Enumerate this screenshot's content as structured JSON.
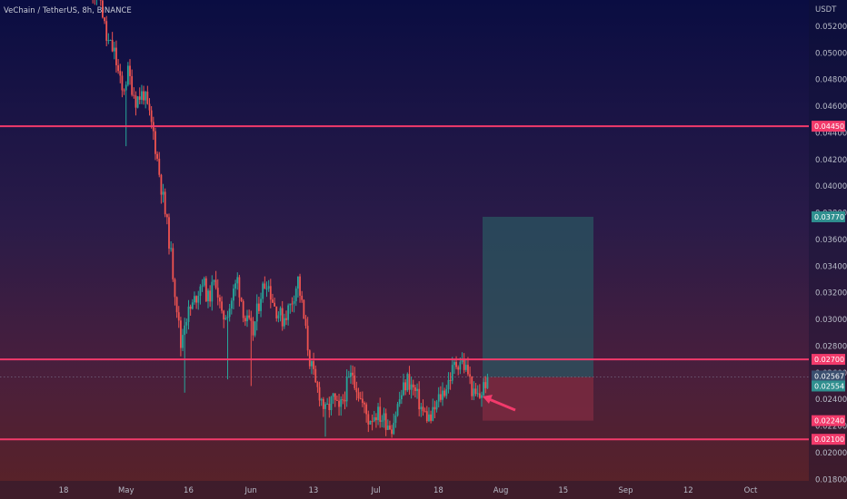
{
  "chart_data": {
    "type": "candlestick",
    "title": "VeChain / TetherUS, 8h, BINANCE",
    "currency": "USDT",
    "ylim": [
      0.0172,
      0.0537
    ],
    "y_ticks": [
      "0.05200",
      "0.05000",
      "0.04800",
      "0.04600",
      "0.04400",
      "0.04200",
      "0.04000",
      "0.03800",
      "0.03600",
      "0.03400",
      "0.03200",
      "0.03000",
      "0.02800",
      "0.02600",
      "0.02400",
      "0.02200",
      "0.02000",
      "0.01800"
    ],
    "x_labels": [
      "18",
      "May",
      "16",
      "Jun",
      "13",
      "Jul",
      "18",
      "Aug",
      "15",
      "Sep",
      "12",
      "Oct"
    ],
    "price_path": [
      [
        0,
        0.055
      ],
      [
        5,
        0.054
      ],
      [
        8,
        0.051
      ],
      [
        12,
        0.05
      ],
      [
        16,
        0.047
      ],
      [
        19,
        0.0485
      ],
      [
        23,
        0.0465
      ],
      [
        27,
        0.047
      ],
      [
        32,
        0.044
      ],
      [
        36,
        0.04
      ],
      [
        40,
        0.036
      ],
      [
        44,
        0.031
      ],
      [
        46,
        0.028
      ],
      [
        48,
        0.03
      ],
      [
        52,
        0.031
      ],
      [
        57,
        0.033
      ],
      [
        60,
        0.0315
      ],
      [
        64,
        0.033
      ],
      [
        67,
        0.03
      ],
      [
        71,
        0.031
      ],
      [
        75,
        0.033
      ],
      [
        79,
        0.03
      ],
      [
        83,
        0.029
      ],
      [
        87,
        0.032
      ],
      [
        90,
        0.033
      ],
      [
        94,
        0.031
      ],
      [
        98,
        0.03
      ],
      [
        102,
        0.031
      ],
      [
        106,
        0.033
      ],
      [
        110,
        0.029
      ],
      [
        112,
        0.027
      ],
      [
        115,
        0.025
      ],
      [
        117,
        0.0245
      ],
      [
        120,
        0.023
      ],
      [
        124,
        0.024
      ],
      [
        127,
        0.023
      ],
      [
        131,
        0.025
      ],
      [
        134,
        0.026
      ],
      [
        138,
        0.024
      ],
      [
        142,
        0.0225
      ],
      [
        146,
        0.023
      ],
      [
        150,
        0.0225
      ],
      [
        154,
        0.022
      ],
      [
        158,
        0.024
      ],
      [
        162,
        0.0255
      ],
      [
        166,
        0.0245
      ],
      [
        170,
        0.023
      ],
      [
        174,
        0.0225
      ],
      [
        178,
        0.024
      ],
      [
        182,
        0.025
      ],
      [
        186,
        0.0265
      ],
      [
        189,
        0.027
      ],
      [
        193,
        0.026
      ],
      [
        196,
        0.0242
      ],
      [
        199,
        0.0242
      ],
      [
        203,
        0.0257
      ]
    ],
    "lows": [
      [
        70,
        0.0255
      ],
      [
        82,
        0.025
      ],
      [
        120,
        0.0212
      ],
      [
        152,
        0.022
      ],
      [
        174,
        0.0222
      ]
    ],
    "spikes": [
      [
        18,
        0.043
      ],
      [
        48,
        0.0245
      ]
    ],
    "horizontal_levels": [
      {
        "price": 0.0445,
        "label": "0.04450"
      },
      {
        "price": 0.027,
        "label": "0.02700"
      },
      {
        "price": 0.021,
        "label": "0.02100"
      }
    ],
    "current_price": 0.02567,
    "position": {
      "entry": 0.02567,
      "target": 0.0377,
      "stop": 0.0224
    },
    "price_tags": [
      {
        "label": "0.04450",
        "price": 0.0445,
        "color": "#f23a6b"
      },
      {
        "label": "0.03770",
        "price": 0.0377,
        "color": "#2f8f8f"
      },
      {
        "label": "0.02700",
        "price": 0.027,
        "color": "#f23a6b"
      },
      {
        "label": "0.02567",
        "price": 0.02575,
        "color": "#3a4f6f"
      },
      {
        "label": "0.02554",
        "price": 0.025,
        "color": "#2f8f8f"
      },
      {
        "label": "0.02240",
        "price": 0.0224,
        "color": "#f23a6b"
      },
      {
        "label": "0.02100",
        "price": 0.021,
        "color": "#f23a6b"
      }
    ],
    "colors": {
      "up": "#26a69a",
      "down": "#ef5350",
      "level": "#f23a6b",
      "target_zone": "#2a5560",
      "stop_zone": "#7a2a40",
      "arrow": "#f23a6b"
    }
  }
}
